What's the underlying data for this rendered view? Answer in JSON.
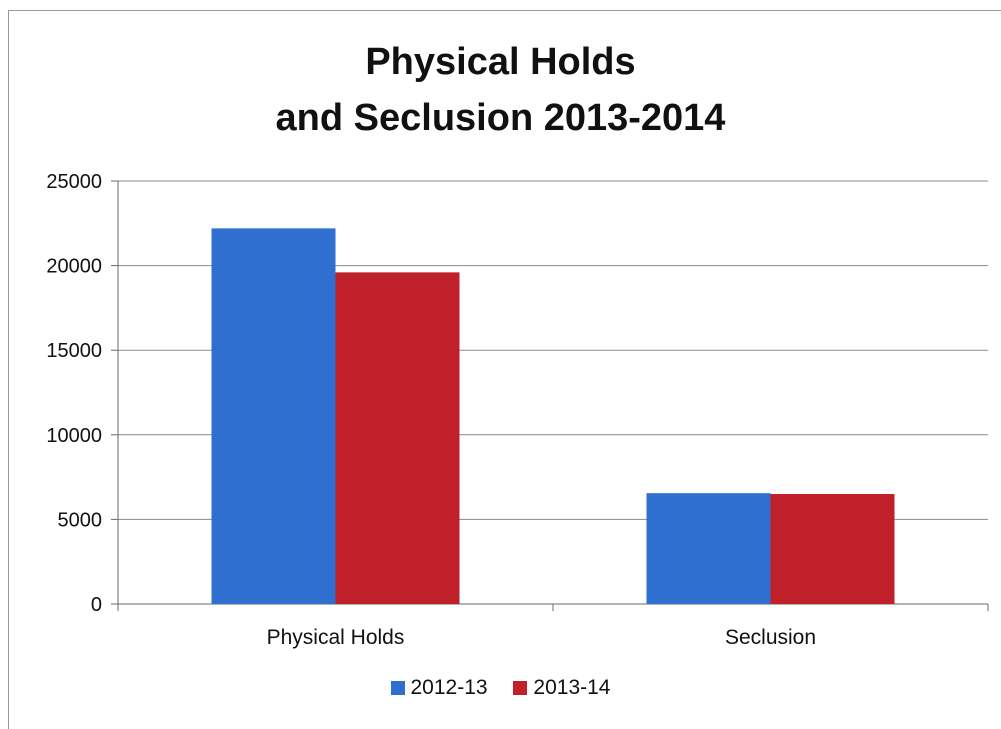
{
  "chart_data": {
    "type": "bar",
    "title": [
      "Physical Holds",
      "and Seclusion 2013-2014"
    ],
    "categories": [
      "Physical Holds",
      "Seclusion"
    ],
    "series": [
      {
        "name": "2012-13",
        "values": [
          22200,
          6550
        ],
        "color": "#2e6fcf"
      },
      {
        "name": "2013-14",
        "values": [
          19600,
          6500
        ],
        "color": "#c0202a"
      }
    ],
    "ylim": [
      0,
      25000
    ],
    "yticks": [
      "0",
      "5000",
      "10000",
      "15000",
      "20000",
      "25000"
    ],
    "grid": true,
    "legend_position": "bottom"
  }
}
